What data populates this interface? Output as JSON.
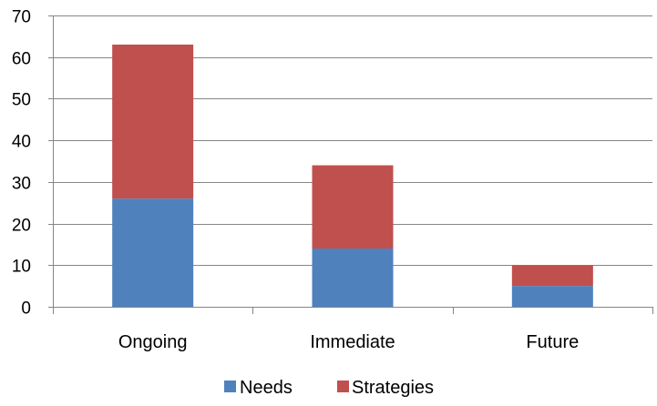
{
  "chart_data": {
    "type": "bar",
    "stacked": true,
    "categories": [
      "Ongoing",
      "Immediate",
      "Future"
    ],
    "series": [
      {
        "name": "Needs",
        "values": [
          26,
          14,
          5
        ],
        "color": "#4f81bd"
      },
      {
        "name": "Strategies",
        "values": [
          37,
          20,
          5
        ],
        "color": "#c0504d"
      }
    ],
    "title": "",
    "xlabel": "",
    "ylabel": "",
    "ylim": [
      0,
      70
    ],
    "yticks": [
      0,
      10,
      20,
      30,
      40,
      50,
      60,
      70
    ],
    "grid": true,
    "legend_position": "bottom"
  },
  "colors": {
    "gridline": "#868686",
    "axis": "#868686",
    "text": "#000000"
  }
}
